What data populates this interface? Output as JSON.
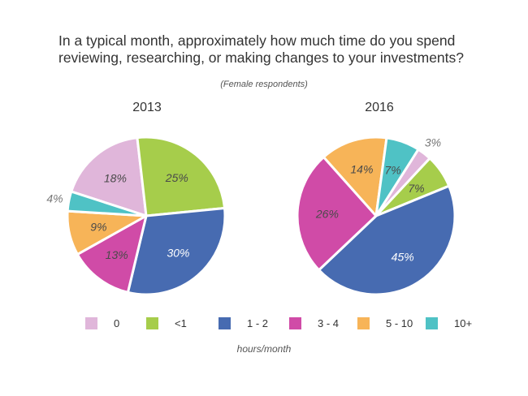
{
  "chart_data": {
    "type": "pie",
    "title": [
      "In a typical month, approximately how much time do you spend",
      "reviewing, researching, or making changes to your investments?"
    ],
    "subtitle": "(Female respondents)",
    "xlabel": "hours/month",
    "categories": [
      "0",
      "<1",
      "1 - 2",
      "3 - 4",
      "5 - 10",
      "10+"
    ],
    "colors": [
      "#e0b6da",
      "#a6cd4b",
      "#476bb1",
      "#d04ba7",
      "#f7b458",
      "#4fc2c5"
    ],
    "legend_position": "bottom",
    "pies": [
      {
        "name": "2013",
        "values": [
          18,
          25,
          30,
          13,
          9,
          4
        ],
        "labels": [
          "18%",
          "25%",
          "30%",
          "13%",
          "9%",
          "4%"
        ]
      },
      {
        "name": "2016",
        "values": [
          3,
          7,
          45,
          26,
          14,
          7
        ],
        "labels": [
          "3%",
          "7%",
          "45%",
          "26%",
          "14%",
          "7%"
        ]
      }
    ]
  }
}
